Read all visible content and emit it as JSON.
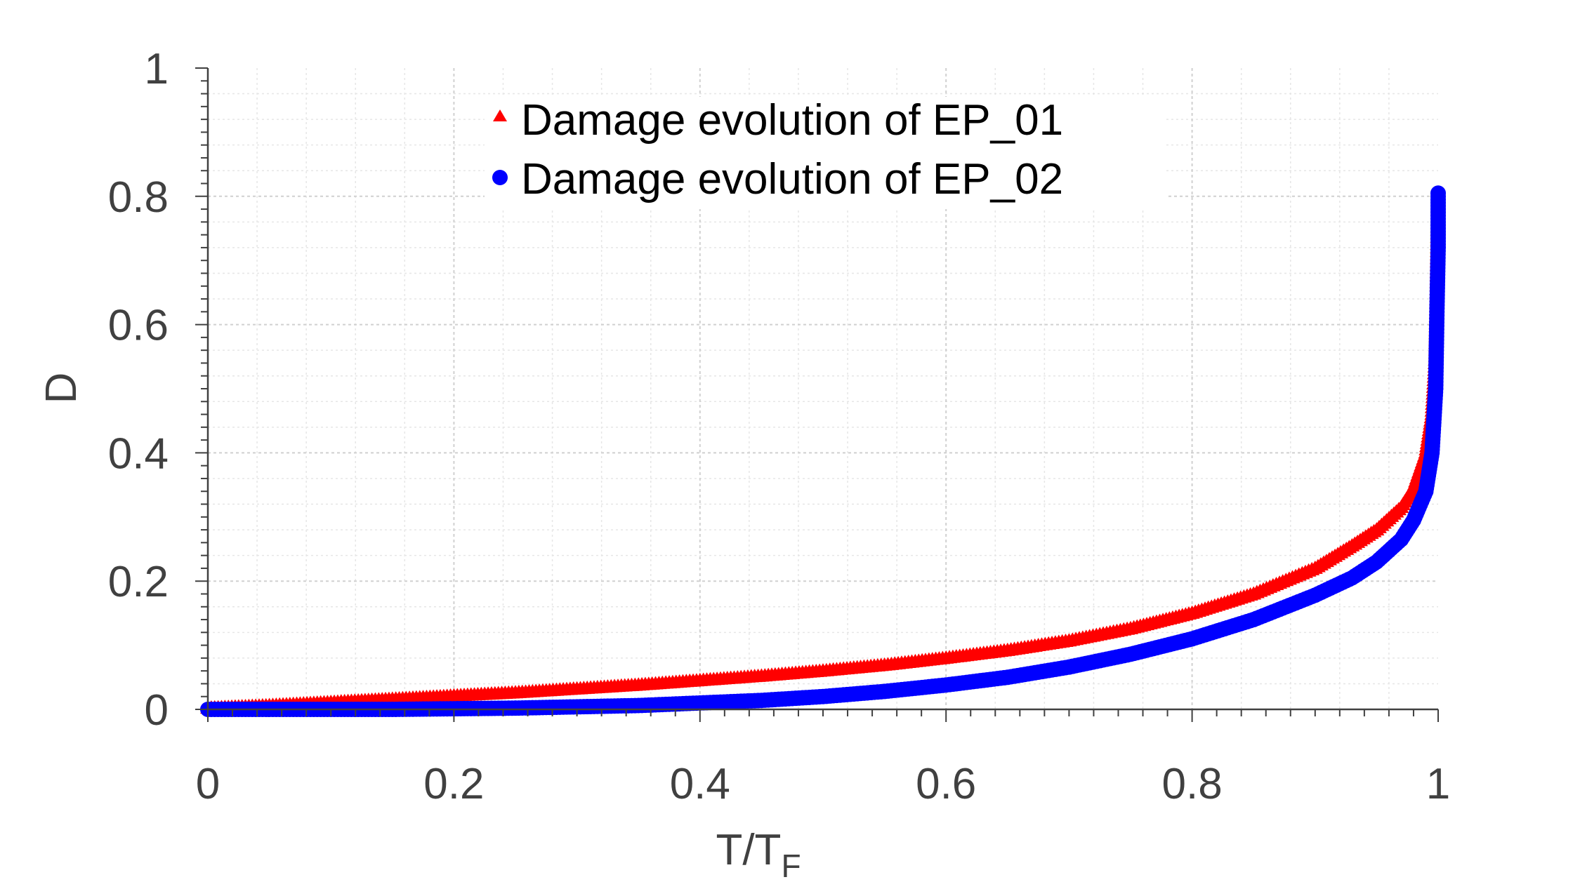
{
  "chart_data": {
    "type": "scatter",
    "xlabel": "T/T",
    "xlabel_subscript": "F",
    "ylabel": "D",
    "xlim": [
      0,
      1
    ],
    "ylim": [
      0,
      1
    ],
    "x_ticks": [
      "0",
      "0.2",
      "0.4",
      "0.6",
      "0.8",
      "1"
    ],
    "y_ticks": [
      "0",
      "0.2",
      "0.4",
      "0.6",
      "0.8",
      "1"
    ],
    "grid": true,
    "minor_grid": true,
    "legend_position": "top-center",
    "series": [
      {
        "name": "Damage evolution of EP_01",
        "marker": "triangle",
        "color": "#ff0000",
        "points": [
          [
            0,
            0.002
          ],
          [
            0.05,
            0.006
          ],
          [
            0.1,
            0.011
          ],
          [
            0.15,
            0.016
          ],
          [
            0.2,
            0.021
          ],
          [
            0.25,
            0.026
          ],
          [
            0.3,
            0.032
          ],
          [
            0.35,
            0.038
          ],
          [
            0.4,
            0.045
          ],
          [
            0.45,
            0.052
          ],
          [
            0.5,
            0.06
          ],
          [
            0.55,
            0.069
          ],
          [
            0.6,
            0.08
          ],
          [
            0.65,
            0.092
          ],
          [
            0.7,
            0.107
          ],
          [
            0.75,
            0.126
          ],
          [
            0.8,
            0.15
          ],
          [
            0.85,
            0.18
          ],
          [
            0.9,
            0.22
          ],
          [
            0.93,
            0.255
          ],
          [
            0.95,
            0.28
          ],
          [
            0.97,
            0.315
          ],
          [
            0.98,
            0.345
          ],
          [
            0.99,
            0.4
          ],
          [
            0.995,
            0.46
          ],
          [
            0.998,
            0.55
          ],
          [
            0.999,
            0.65
          ],
          [
            1.0,
            0.79
          ]
        ]
      },
      {
        "name": "Damage evolution of EP_02",
        "marker": "circle",
        "color": "#0000ff",
        "points": [
          [
            0,
            0.0
          ],
          [
            0.05,
            0.0
          ],
          [
            0.1,
            0.0
          ],
          [
            0.15,
            0.0
          ],
          [
            0.2,
            0.001
          ],
          [
            0.25,
            0.002
          ],
          [
            0.3,
            0.004
          ],
          [
            0.35,
            0.006
          ],
          [
            0.4,
            0.01
          ],
          [
            0.45,
            0.014
          ],
          [
            0.5,
            0.02
          ],
          [
            0.55,
            0.028
          ],
          [
            0.6,
            0.038
          ],
          [
            0.65,
            0.05
          ],
          [
            0.7,
            0.066
          ],
          [
            0.75,
            0.086
          ],
          [
            0.8,
            0.11
          ],
          [
            0.85,
            0.14
          ],
          [
            0.9,
            0.178
          ],
          [
            0.93,
            0.205
          ],
          [
            0.95,
            0.23
          ],
          [
            0.97,
            0.265
          ],
          [
            0.98,
            0.295
          ],
          [
            0.99,
            0.34
          ],
          [
            0.995,
            0.4
          ],
          [
            0.998,
            0.5
          ],
          [
            0.999,
            0.62
          ],
          [
            1.0,
            0.72
          ],
          [
            1.0,
            0.77
          ],
          [
            1.0,
            0.805
          ]
        ]
      }
    ]
  }
}
